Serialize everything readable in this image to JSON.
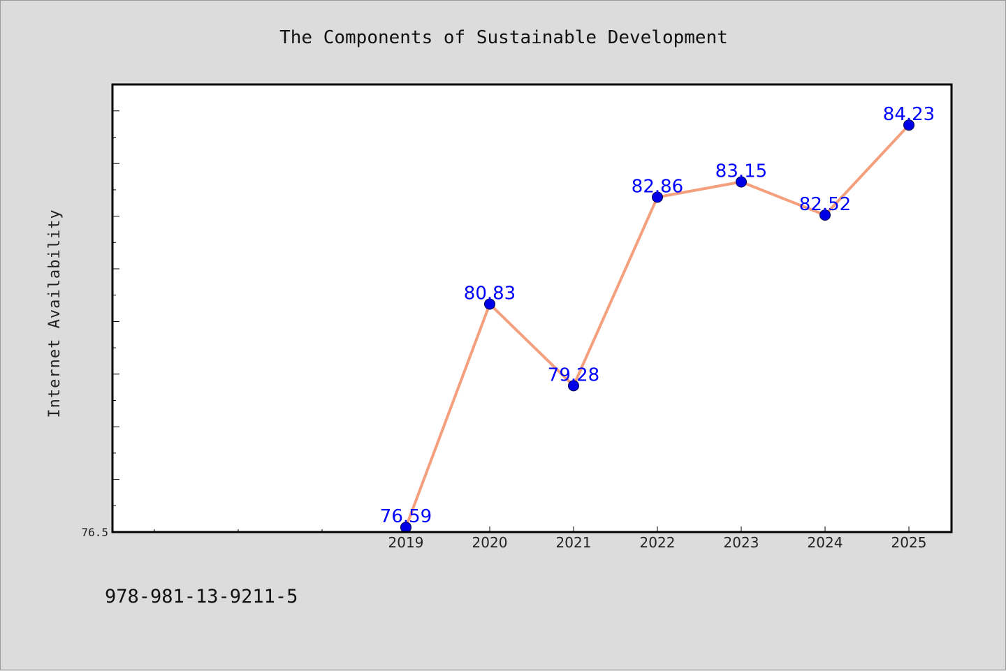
{
  "chart_data": {
    "type": "line",
    "title": "The Components of Sustainable Development",
    "ylabel": "Internet Availability",
    "xlabel": "",
    "categories": [
      "2019",
      "2020",
      "2021",
      "2022",
      "2023",
      "2024",
      "2025"
    ],
    "series": [
      {
        "values": [
          76.59,
          80.83,
          79.28,
          82.86,
          83.15,
          82.52,
          84.23
        ]
      }
    ],
    "ylim": [
      76.5,
      85.0
    ],
    "ytick_labels": [
      "76.5"
    ],
    "line_color": "#f4a07e",
    "marker_color": "#0000e6",
    "label_color": "#0000ff",
    "grid": false
  },
  "footer": {
    "isbn": "978-981-13-9211-5"
  }
}
